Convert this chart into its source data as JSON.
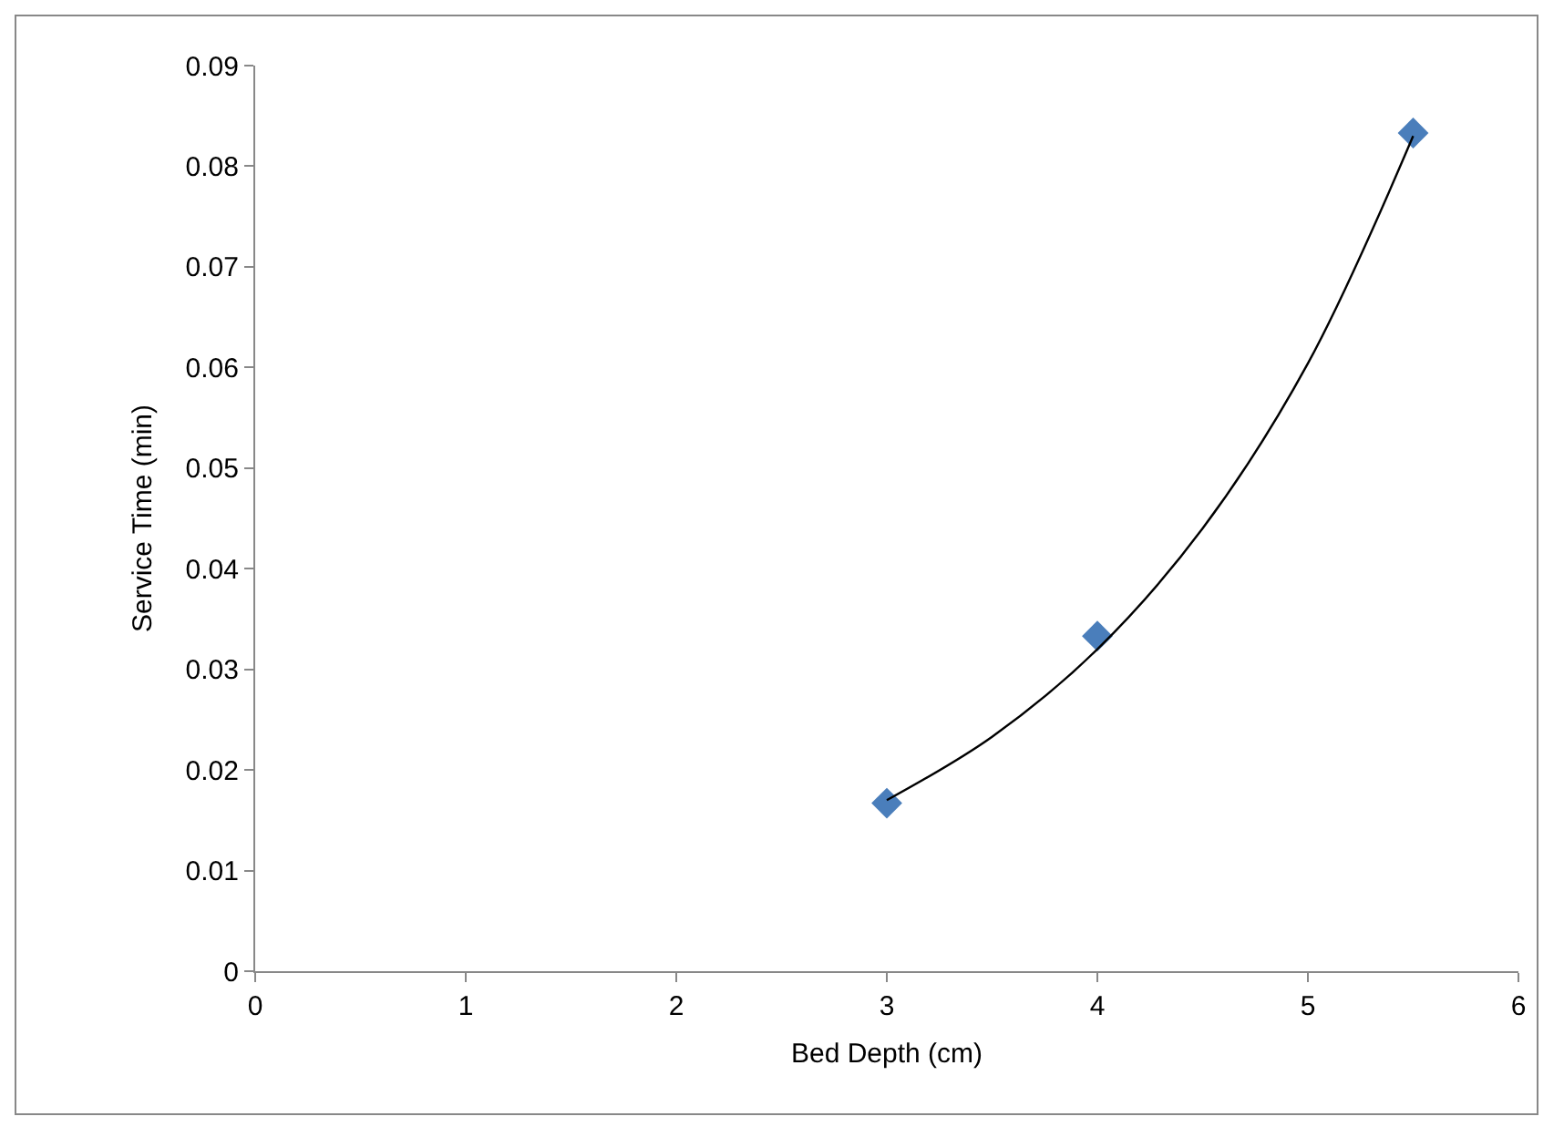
{
  "chart_data": {
    "type": "scatter",
    "xlabel": "Bed Depth (cm)",
    "ylabel": "Service Time (min)",
    "xlim": [
      0,
      6
    ],
    "xticks": [
      0,
      1,
      2,
      3,
      4,
      5,
      6
    ],
    "ylim": [
      0,
      0.09
    ],
    "yticks": [
      0,
      0.01,
      0.02,
      0.03,
      0.04,
      0.05,
      0.06,
      0.07,
      0.08,
      0.09
    ],
    "grid": false,
    "series": [
      {
        "color": "#4a7ebb",
        "marker": "diamond",
        "x": [
          3,
          4,
          5.5
        ],
        "values": [
          0.0167,
          0.0333,
          0.0833
        ]
      },
      {
        "type": "line",
        "color": "#000000",
        "marker": "none",
        "line_style": "solid",
        "x": [
          3,
          3.5,
          4,
          4.5,
          5,
          5.5
        ],
        "values": [
          0.017,
          0.0233,
          0.032,
          0.044,
          0.0604,
          0.083
        ]
      }
    ]
  }
}
